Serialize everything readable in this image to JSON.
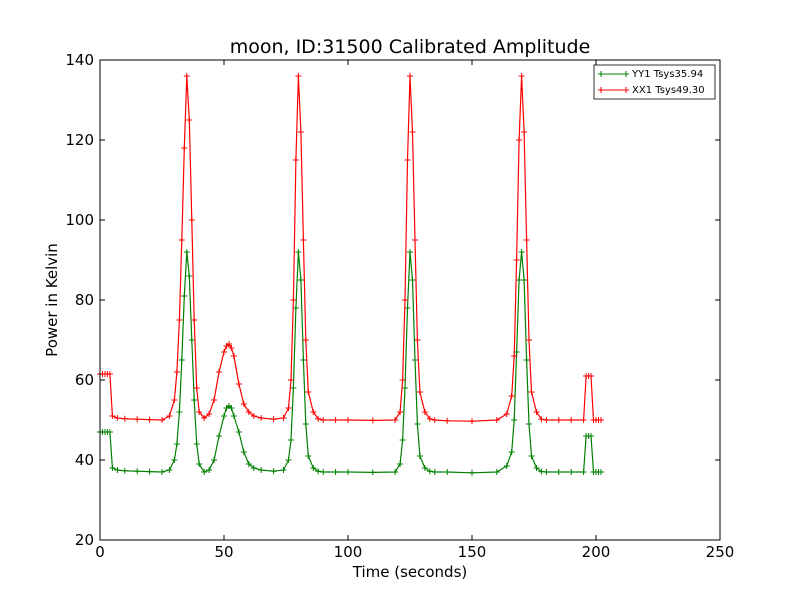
{
  "chart_data": {
    "type": "line",
    "title": "moon, ID:31500 Calibrated Amplitude",
    "xlabel": "Time (seconds)",
    "ylabel": "Power in Kelvin",
    "xlim": [
      0,
      250
    ],
    "ylim": [
      20,
      140
    ],
    "xticks": [
      "0",
      "50",
      "100",
      "150",
      "200",
      "250"
    ],
    "yticks": [
      "20",
      "40",
      "60",
      "80",
      "100",
      "120",
      "140"
    ],
    "grid": false,
    "legend_position": "top-right",
    "series": [
      {
        "name": "YY1 Tsys35.94",
        "color": "#008000",
        "marker": "+",
        "x": [
          0,
          1,
          2,
          3,
          4,
          5,
          7,
          10,
          15,
          20,
          25,
          28,
          30,
          31,
          32,
          33,
          34,
          35,
          36,
          37,
          38,
          39,
          40,
          42,
          44,
          46,
          48,
          50,
          51,
          52,
          53,
          54,
          56,
          58,
          60,
          62,
          65,
          70,
          74,
          76,
          77,
          78,
          79,
          80,
          81,
          82,
          83,
          84,
          86,
          88,
          90,
          95,
          100,
          110,
          119,
          121,
          122,
          123,
          124,
          125,
          126,
          127,
          128,
          129,
          131,
          133,
          135,
          140,
          150,
          160,
          164,
          166,
          167,
          168,
          169,
          170,
          171,
          172,
          173,
          174,
          176,
          178,
          180,
          185,
          190,
          195,
          196,
          197,
          198,
          199,
          200,
          201,
          202
        ],
        "y": [
          47,
          47,
          47,
          47,
          47,
          38,
          37.5,
          37.3,
          37.2,
          37.1,
          37,
          37.5,
          40,
          44,
          52,
          65,
          81,
          92,
          86,
          70,
          55,
          44,
          39,
          37,
          37.5,
          40,
          46,
          51,
          53,
          53.5,
          53,
          51,
          47,
          42,
          39,
          38,
          37.5,
          37.2,
          37.5,
          40,
          45,
          58,
          78,
          92,
          85,
          65,
          49,
          41,
          38,
          37.2,
          37,
          37,
          37,
          36.9,
          37,
          39,
          45,
          58,
          78,
          92,
          85,
          65,
          49,
          41,
          38,
          37.2,
          37,
          37,
          36.8,
          37,
          38.5,
          42,
          50,
          67,
          85,
          92,
          85,
          65,
          49,
          41,
          38,
          37.1,
          37,
          37,
          37,
          37,
          46,
          46,
          46,
          37,
          37,
          37,
          37
        ]
      },
      {
        "name": "XX1 Tsys49.30",
        "color": "#ff0000",
        "marker": "+",
        "x": [
          0,
          1,
          2,
          3,
          4,
          5,
          7,
          10,
          15,
          20,
          25,
          28,
          30,
          31,
          32,
          33,
          34,
          35,
          36,
          37,
          38,
          39,
          40,
          42,
          44,
          46,
          48,
          50,
          51,
          52,
          53,
          54,
          56,
          58,
          60,
          62,
          65,
          70,
          74,
          76,
          77,
          78,
          79,
          80,
          81,
          82,
          83,
          84,
          86,
          88,
          90,
          95,
          100,
          110,
          119,
          121,
          122,
          123,
          124,
          125,
          126,
          127,
          128,
          129,
          131,
          133,
          135,
          140,
          150,
          160,
          164,
          166,
          167,
          168,
          169,
          170,
          171,
          172,
          173,
          174,
          176,
          178,
          180,
          185,
          190,
          195,
          196,
          197,
          198,
          199,
          200,
          201,
          202
        ],
        "y": [
          61.5,
          61.5,
          61.5,
          61.5,
          61.5,
          51,
          50.5,
          50.3,
          50.2,
          50.1,
          50,
          51,
          55,
          62,
          75,
          95,
          118,
          136,
          125,
          100,
          75,
          58,
          52,
          50.5,
          51.5,
          55,
          62,
          67,
          68.5,
          69,
          68,
          66,
          59,
          54,
          52,
          51,
          50.5,
          50.2,
          50.5,
          53,
          60,
          80,
          115,
          136,
          122,
          95,
          70,
          57,
          52,
          50.3,
          50,
          50,
          50,
          49.9,
          50,
          52,
          60,
          80,
          115,
          136,
          122,
          95,
          70,
          57,
          52,
          50.3,
          50,
          49.8,
          49.7,
          50,
          51.5,
          56,
          66,
          90,
          120,
          136,
          122,
          95,
          70,
          57,
          52,
          50.2,
          50,
          50,
          50,
          50,
          61,
          61,
          61,
          50,
          50,
          50,
          50
        ]
      }
    ]
  }
}
